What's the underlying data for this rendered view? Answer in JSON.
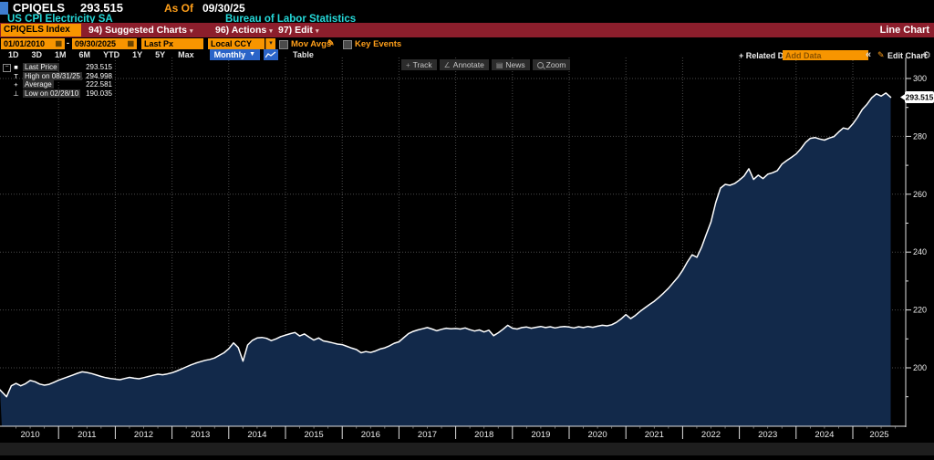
{
  "titlebar": {
    "ticker": "CPIQELS",
    "last_value": "293.515",
    "as_of_label": "As Of",
    "as_of_date": "09/30/25",
    "security_name": "US CPI Electricity SA",
    "source": "Bureau of Labor Statistics"
  },
  "menubar": {
    "security_field": "CPIQELS Index",
    "items": [
      {
        "label": "94) Suggested Charts"
      },
      {
        "label": "96) Actions"
      },
      {
        "label": "97) Edit"
      }
    ],
    "view_label": "Line Chart"
  },
  "controls": {
    "date_from": "01/01/2010",
    "date_separator": "-",
    "date_to": "09/30/2025",
    "price_field": "Last Px",
    "currency": "Local CCY",
    "mov_avgs_label": "Mov Avgs",
    "key_events_label": "Key Events"
  },
  "range_bar": {
    "ranges": [
      "1D",
      "3D",
      "1M",
      "6M",
      "YTD",
      "1Y",
      "5Y",
      "Max"
    ],
    "period": "Monthly",
    "table_label": "Table",
    "related_label": "+ Related Dat",
    "add_data_placeholder": "Add Data",
    "collapse_icon": "«",
    "edit_chart_label": "Edit Chart"
  },
  "icons": {
    "caret_down": "▾",
    "caret_down_big": "▼",
    "calendar": "▦",
    "pencil": "✎",
    "gear": "⚙",
    "expand_box": "−"
  },
  "chart_tools": [
    {
      "icon": "+",
      "label": "Track"
    },
    {
      "icon": "∠",
      "label": "Annotate"
    },
    {
      "icon": "▤",
      "label": "News"
    },
    {
      "icon": "search",
      "label": "Zoom"
    }
  ],
  "legend": {
    "rows": [
      {
        "marker_name": "last-price-marker",
        "marker_icon": "■",
        "label": "Last Price",
        "value": "293.515"
      },
      {
        "marker_name": "high-marker",
        "marker_icon": "T",
        "label": "High on 08/31/25",
        "value": "294.998"
      },
      {
        "marker_name": "average-marker",
        "marker_icon": "+",
        "label": "Average",
        "value": "222.581"
      },
      {
        "marker_name": "low-marker",
        "marker_icon": "⊥",
        "label": "Low on 02/28/10",
        "value": "190.035"
      }
    ]
  },
  "chart_data": {
    "type": "area",
    "title": "US CPI Electricity SA (CPIQELS Index), Last Px, Monthly",
    "frequency": "monthly",
    "x_start": "2010-01",
    "x_end": "2025-09",
    "values": [
      192.4,
      190.0,
      193.8,
      194.6,
      193.8,
      194.5,
      195.6,
      195.2,
      194.4,
      194.0,
      194.3,
      195.0,
      195.7,
      196.3,
      196.9,
      197.5,
      198.1,
      198.6,
      198.4,
      198.0,
      197.5,
      197.0,
      196.6,
      196.3,
      196.1,
      195.9,
      196.3,
      196.7,
      196.4,
      196.2,
      196.6,
      197.0,
      197.4,
      197.8,
      197.6,
      197.9,
      198.3,
      198.9,
      199.6,
      200.3,
      201.0,
      201.6,
      202.1,
      202.6,
      202.9,
      203.4,
      204.3,
      205.2,
      206.6,
      208.6,
      207.0,
      202.3,
      207.9,
      209.5,
      210.3,
      210.5,
      210.2,
      209.4,
      210.0,
      210.8,
      211.3,
      211.8,
      212.2,
      211.0,
      211.7,
      210.6,
      209.6,
      210.3,
      209.3,
      209.0,
      208.6,
      208.2,
      208.0,
      207.4,
      206.8,
      206.3,
      205.2,
      205.6,
      205.3,
      205.8,
      206.5,
      206.9,
      207.6,
      208.5,
      209.0,
      210.4,
      211.8,
      212.6,
      213.1,
      213.5,
      213.9,
      213.4,
      212.8,
      213.3,
      213.7,
      213.5,
      213.6,
      213.4,
      213.8,
      213.2,
      212.7,
      213.1,
      212.4,
      213.0,
      211.1,
      212.1,
      213.3,
      214.7,
      213.7,
      213.4,
      213.9,
      214.1,
      213.7,
      214.0,
      214.3,
      213.9,
      214.2,
      213.8,
      214.1,
      214.3,
      214.1,
      213.8,
      214.2,
      213.9,
      214.3,
      214.0,
      214.4,
      214.7,
      214.5,
      214.9,
      215.7,
      216.9,
      218.4,
      217.0,
      218.1,
      219.5,
      220.7,
      221.9,
      223.0,
      224.4,
      225.9,
      227.5,
      229.4,
      231.3,
      233.7,
      236.6,
      239.1,
      238.2,
      241.6,
      246.1,
      250.4,
      257.1,
      262.1,
      263.4,
      263.1,
      263.7,
      264.9,
      266.3,
      268.8,
      265.1,
      266.6,
      265.4,
      266.9,
      267.4,
      268.1,
      270.4,
      271.6,
      272.7,
      273.9,
      275.7,
      277.9,
      279.3,
      279.6,
      279.1,
      278.7,
      279.4,
      279.9,
      281.5,
      282.9,
      282.5,
      284.3,
      286.6,
      289.3,
      291.1,
      293.3,
      294.7,
      293.9,
      294.998,
      293.515
    ],
    "last_price": 293.515,
    "last_price_label": "293.515",
    "high": {
      "date": "08/31/25",
      "value": 294.998
    },
    "low": {
      "date": "02/28/10",
      "value": 190.035
    },
    "average": 222.581,
    "ylim": [
      180,
      307
    ],
    "yticks_labeled": [
      200,
      220,
      240,
      260,
      280,
      300
    ],
    "ytick_minor_step": 10,
    "year_labels": [
      "2010",
      "2011",
      "2012",
      "2013",
      "2014",
      "2015",
      "2016",
      "2017",
      "2018",
      "2019",
      "2020",
      "2021",
      "2022",
      "2023",
      "2024",
      "2025"
    ],
    "grid": true,
    "line_color": "#ffffff",
    "fill_color": "#12294a",
    "grid_color": "#4a4a4a",
    "axis_color": "#e0e0e0",
    "legend_position": "top-left"
  }
}
